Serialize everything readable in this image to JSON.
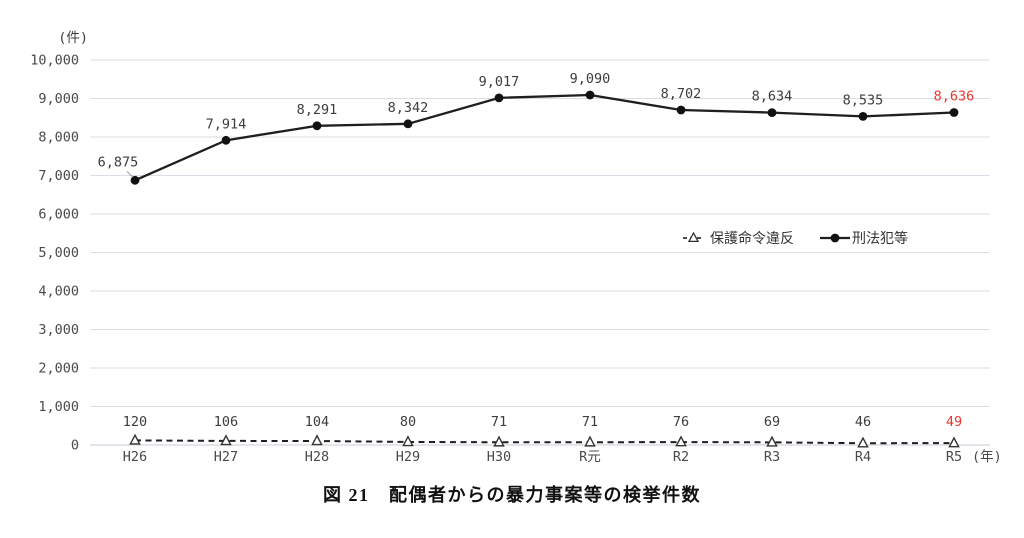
{
  "chart_data": {
    "type": "line",
    "title_caption": "図 21　配偶者からの暴力事案等の検挙件数",
    "unit_label": "(件)",
    "year_suffix_label": "(年)",
    "categories": [
      "H26",
      "H27",
      "H28",
      "H29",
      "H30",
      "R元",
      "R2",
      "R3",
      "R4",
      "R5"
    ],
    "series": [
      {
        "name": "保護命令違反",
        "line": "dashed",
        "marker": "open-triangle",
        "values": [
          120,
          106,
          104,
          80,
          71,
          71,
          76,
          69,
          46,
          49
        ],
        "value_labels": [
          "120",
          "106",
          "104",
          "80",
          "71",
          "71",
          "76",
          "69",
          "46",
          "49"
        ]
      },
      {
        "name": "刑法犯等",
        "line": "solid",
        "marker": "filled-circle",
        "values": [
          6875,
          7914,
          8291,
          8342,
          9017,
          9090,
          8702,
          8634,
          8535,
          8636
        ],
        "value_labels": [
          "6,875",
          "7,914",
          "8,291",
          "8,342",
          "9,017",
          "9,090",
          "8,702",
          "8,634",
          "8,535",
          "8,636"
        ]
      }
    ],
    "ylim": [
      0,
      10000
    ],
    "ytick_step": 1000,
    "ytick_labels": [
      "0",
      "1,000",
      "2,000",
      "3,000",
      "4,000",
      "5,000",
      "6,000",
      "7,000",
      "8,000",
      "9,000",
      "10,000"
    ],
    "grid": true,
    "legend_position": "inside-right-middle",
    "legend_entries": [
      "保護命令違反",
      "刑法犯等"
    ],
    "colors": {
      "series_line": "#1f1f1f",
      "grid_line": "#d9dfe6",
      "axis_line": "#c5cdd5",
      "label_text": "#3d3d3d",
      "tick_text": "#4a4a4a",
      "highlight_last": "#e8392e"
    }
  }
}
